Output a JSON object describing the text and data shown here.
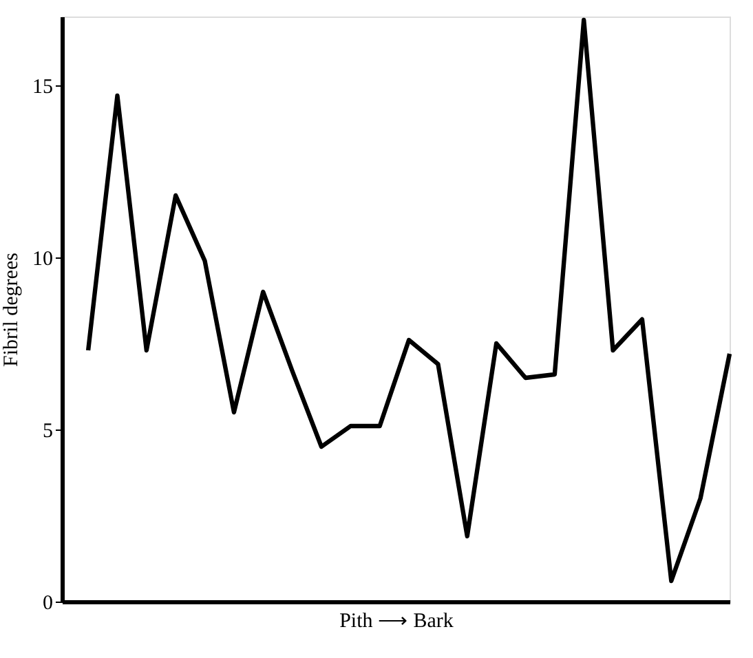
{
  "chart_data": {
    "type": "line",
    "ylabel": "Fibril degrees",
    "xlabel": "Pith ⟶ Bark",
    "categories": [
      null,
      null,
      null,
      null,
      null,
      null,
      null,
      null,
      null,
      null,
      null,
      null,
      null,
      null,
      null,
      null,
      null,
      null,
      null,
      null,
      null,
      null,
      null
    ],
    "series": [
      {
        "color": "#000000",
        "values": [
          7.3,
          14.7,
          7.3,
          11.8,
          9.9,
          5.5,
          9.0,
          6.7,
          4.5,
          5.1,
          5.1,
          7.6,
          6.9,
          1.9,
          7.5,
          6.5,
          6.6,
          16.9,
          7.3,
          8.2,
          0.6,
          3.0,
          7.2
        ]
      }
    ],
    "ylim": [
      0,
      17
    ],
    "yticks": [
      0,
      5,
      10,
      15
    ],
    "grid": false,
    "tick_labels": "y",
    "marker": "none",
    "line_style": "solid"
  }
}
